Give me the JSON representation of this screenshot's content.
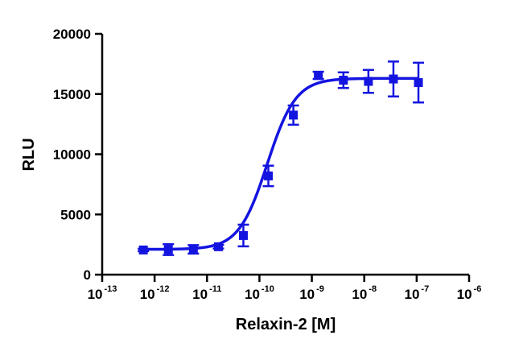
{
  "chart_data": {
    "type": "scatter",
    "title": "",
    "xlabel": "Relaxin-2 [M]",
    "ylabel": "RLU",
    "x_scale": "log",
    "xlim": [
      1e-13,
      1e-06
    ],
    "ylim": [
      0,
      20000
    ],
    "grid": false,
    "legend": "none",
    "x_ticks": [
      {
        "base": "10",
        "exp": "-13",
        "value": 1e-13
      },
      {
        "base": "10",
        "exp": "-12",
        "value": 1e-12
      },
      {
        "base": "10",
        "exp": "-11",
        "value": 1e-11
      },
      {
        "base": "10",
        "exp": "-10",
        "value": 1e-10
      },
      {
        "base": "10",
        "exp": "-9",
        "value": 1e-09
      },
      {
        "base": "10",
        "exp": "-8",
        "value": 1e-08
      },
      {
        "base": "10",
        "exp": "-7",
        "value": 1e-07
      },
      {
        "base": "10",
        "exp": "-6",
        "value": 1e-06
      }
    ],
    "y_ticks": [
      {
        "label": "0",
        "value": 0
      },
      {
        "label": "5000",
        "value": 5000
      },
      {
        "label": "10000",
        "value": 10000
      },
      {
        "label": "15000",
        "value": 15000
      },
      {
        "label": "20000",
        "value": 20000
      }
    ],
    "series": [
      {
        "color": "#1414e0",
        "marker": "square",
        "points": [
          {
            "x": 6.1e-13,
            "y": 2050,
            "err": 100
          },
          {
            "x": 1.83e-12,
            "y": 2080,
            "err": 450
          },
          {
            "x": 5.49e-12,
            "y": 2100,
            "err": 350
          },
          {
            "x": 1.65e-11,
            "y": 2320,
            "err": 150
          },
          {
            "x": 4.94e-11,
            "y": 3250,
            "err": 900
          },
          {
            "x": 1.48e-10,
            "y": 8200,
            "err": 850
          },
          {
            "x": 4.44e-10,
            "y": 13250,
            "err": 800
          },
          {
            "x": 1.33e-09,
            "y": 16550,
            "err": 300
          },
          {
            "x": 4e-09,
            "y": 16150,
            "err": 650
          },
          {
            "x": 1.2e-08,
            "y": 16050,
            "err": 950
          },
          {
            "x": 3.6e-08,
            "y": 16250,
            "err": 1450
          },
          {
            "x": 1.08e-07,
            "y": 15950,
            "err": 1650
          }
        ],
        "fit": {
          "bottom": 2100,
          "top": 16300,
          "log_ec50": -9.85,
          "hill_slope": 1.6
        }
      }
    ]
  }
}
